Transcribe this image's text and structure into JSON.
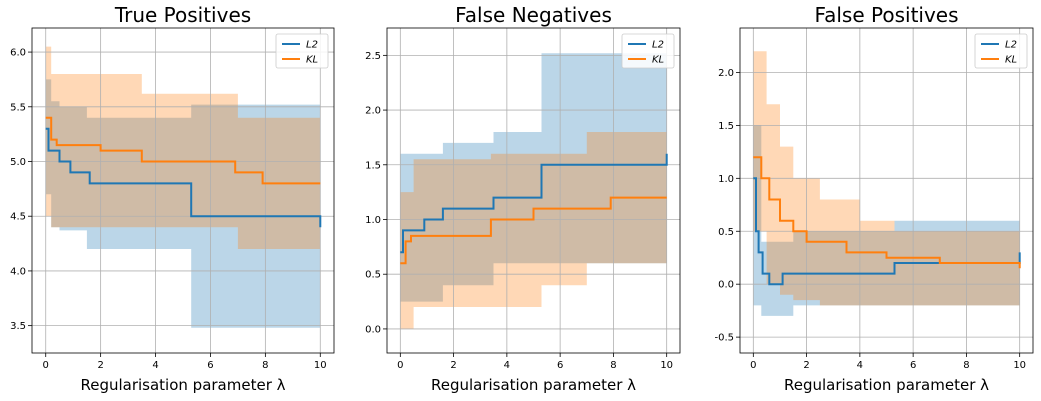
{
  "chart_data": [
    {
      "type": "line",
      "title": "True Positives",
      "xlabel": "Regularisation parameter λ",
      "ylabel": "",
      "xlim": [
        -0.5,
        10.5
      ],
      "ylim": [
        3.25,
        6.22
      ],
      "xticks": [
        0,
        2,
        4,
        6,
        8,
        10
      ],
      "yticks": [
        3.5,
        4.0,
        4.5,
        5.0,
        5.5,
        6.0
      ],
      "ytick_labels": [
        "3.5",
        "4.0",
        "4.5",
        "5.0",
        "5.5",
        "6.0"
      ],
      "grid": true,
      "legend_position": "top-right",
      "series": [
        {
          "name": "L2",
          "color": "#1f77b4",
          "x": [
            0,
            0.1,
            0.2,
            0.5,
            0.9,
            1.6,
            3.5,
            5.3,
            10
          ],
          "values": [
            5.3,
            5.1,
            5.1,
            5.0,
            4.9,
            4.8,
            4.8,
            4.5,
            4.4
          ],
          "band_x": [
            0,
            0.2,
            0.5,
            1.5,
            3.5,
            5.3,
            10
          ],
          "band_low": [
            4.7,
            4.4,
            4.37,
            4.2,
            4.2,
            3.48,
            3.48
          ],
          "band_high": [
            5.75,
            5.55,
            5.5,
            5.4,
            5.4,
            5.52,
            5.52
          ]
        },
        {
          "name": "KL",
          "color": "#ff7f0e",
          "x": [
            0,
            0.2,
            0.4,
            1.2,
            2.0,
            3.5,
            5.0,
            6.9,
            7.9,
            10
          ],
          "values": [
            5.4,
            5.2,
            5.15,
            5.15,
            5.1,
            5.0,
            5.0,
            4.9,
            4.8,
            4.8
          ],
          "band_x": [
            0,
            0.2,
            0.5,
            1.5,
            3.5,
            5.3,
            7.0,
            10
          ],
          "band_low": [
            4.5,
            4.4,
            4.4,
            4.4,
            4.4,
            4.4,
            4.2,
            4.2
          ],
          "band_high": [
            6.05,
            5.8,
            5.8,
            5.8,
            5.62,
            5.62,
            5.4,
            5.4
          ]
        }
      ]
    },
    {
      "type": "line",
      "title": "False Negatives",
      "xlabel": "Regularisation parameter λ",
      "ylabel": "",
      "xlim": [
        -0.5,
        10.5
      ],
      "ylim": [
        -0.22,
        2.75
      ],
      "xticks": [
        0,
        2,
        4,
        6,
        8,
        10
      ],
      "yticks": [
        0.0,
        0.5,
        1.0,
        1.5,
        2.0,
        2.5
      ],
      "ytick_labels": [
        "0.0",
        "0.5",
        "1.0",
        "1.5",
        "2.0",
        "2.5"
      ],
      "grid": true,
      "legend_position": "top-right",
      "series": [
        {
          "name": "L2",
          "color": "#1f77b4",
          "x": [
            0,
            0.1,
            0.4,
            0.9,
            1.6,
            3.5,
            5.3,
            10
          ],
          "values": [
            0.7,
            0.9,
            0.9,
            1.0,
            1.1,
            1.2,
            1.5,
            1.6
          ],
          "band_x": [
            0,
            0.5,
            1.6,
            3.5,
            5.3,
            10
          ],
          "band_low": [
            0.25,
            0.25,
            0.4,
            0.6,
            0.6,
            0.6
          ],
          "band_high": [
            1.6,
            1.6,
            1.7,
            1.8,
            2.52,
            2.52
          ]
        },
        {
          "name": "KL",
          "color": "#ff7f0e",
          "x": [
            0,
            0.2,
            0.4,
            1.2,
            3.4,
            5.0,
            6.9,
            7.9,
            10
          ],
          "values": [
            0.6,
            0.8,
            0.85,
            0.85,
            1.0,
            1.1,
            1.1,
            1.2,
            1.2
          ],
          "band_x": [
            0,
            0.5,
            3.4,
            5.3,
            7.0,
            10
          ],
          "band_low": [
            0.0,
            0.2,
            0.2,
            0.4,
            0.6,
            0.6
          ],
          "band_high": [
            1.25,
            1.55,
            1.6,
            1.6,
            1.8,
            1.8
          ]
        }
      ]
    },
    {
      "type": "line",
      "title": "False Positives",
      "xlabel": "Regularisation parameter λ",
      "ylabel": "",
      "xlim": [
        -0.5,
        10.5
      ],
      "ylim": [
        -0.65,
        2.42
      ],
      "xticks": [
        0,
        2,
        4,
        6,
        8,
        10
      ],
      "yticks": [
        -0.5,
        0.0,
        0.5,
        1.0,
        1.5,
        2.0
      ],
      "ytick_labels": [
        "-0.5",
        "0.0",
        "0.5",
        "1.0",
        "1.5",
        "2.0"
      ],
      "grid": true,
      "legend_position": "top-right",
      "series": [
        {
          "name": "L2",
          "color": "#1f77b4",
          "x": [
            0,
            0.1,
            0.2,
            0.35,
            0.6,
            1.1,
            1.6,
            5.3,
            10
          ],
          "values": [
            1.0,
            0.5,
            0.3,
            0.1,
            0.0,
            0.1,
            0.1,
            0.2,
            0.3
          ],
          "band_x": [
            0,
            0.3,
            1.5,
            5.3,
            8.5,
            10
          ],
          "band_low": [
            -0.2,
            -0.3,
            -0.2,
            -0.2,
            -0.2,
            -0.4
          ],
          "band_high": [
            1.5,
            0.4,
            0.5,
            0.6,
            0.6,
            1.2
          ]
        },
        {
          "name": "KL",
          "color": "#ff7f0e",
          "x": [
            0,
            0.3,
            0.6,
            1.0,
            1.5,
            2.0,
            3.5,
            5.0,
            7.0,
            10
          ],
          "values": [
            1.2,
            1.0,
            0.8,
            0.6,
            0.5,
            0.4,
            0.3,
            0.25,
            0.2,
            0.15
          ],
          "band_x": [
            0,
            0.5,
            1.0,
            1.5,
            2.5,
            4.0,
            5.3,
            10
          ],
          "band_low": [
            0.5,
            0.0,
            -0.1,
            -0.15,
            -0.2,
            -0.2,
            -0.2,
            -0.2
          ],
          "band_high": [
            2.2,
            1.7,
            1.3,
            1.0,
            0.8,
            0.6,
            0.5,
            0.4
          ]
        }
      ]
    }
  ]
}
